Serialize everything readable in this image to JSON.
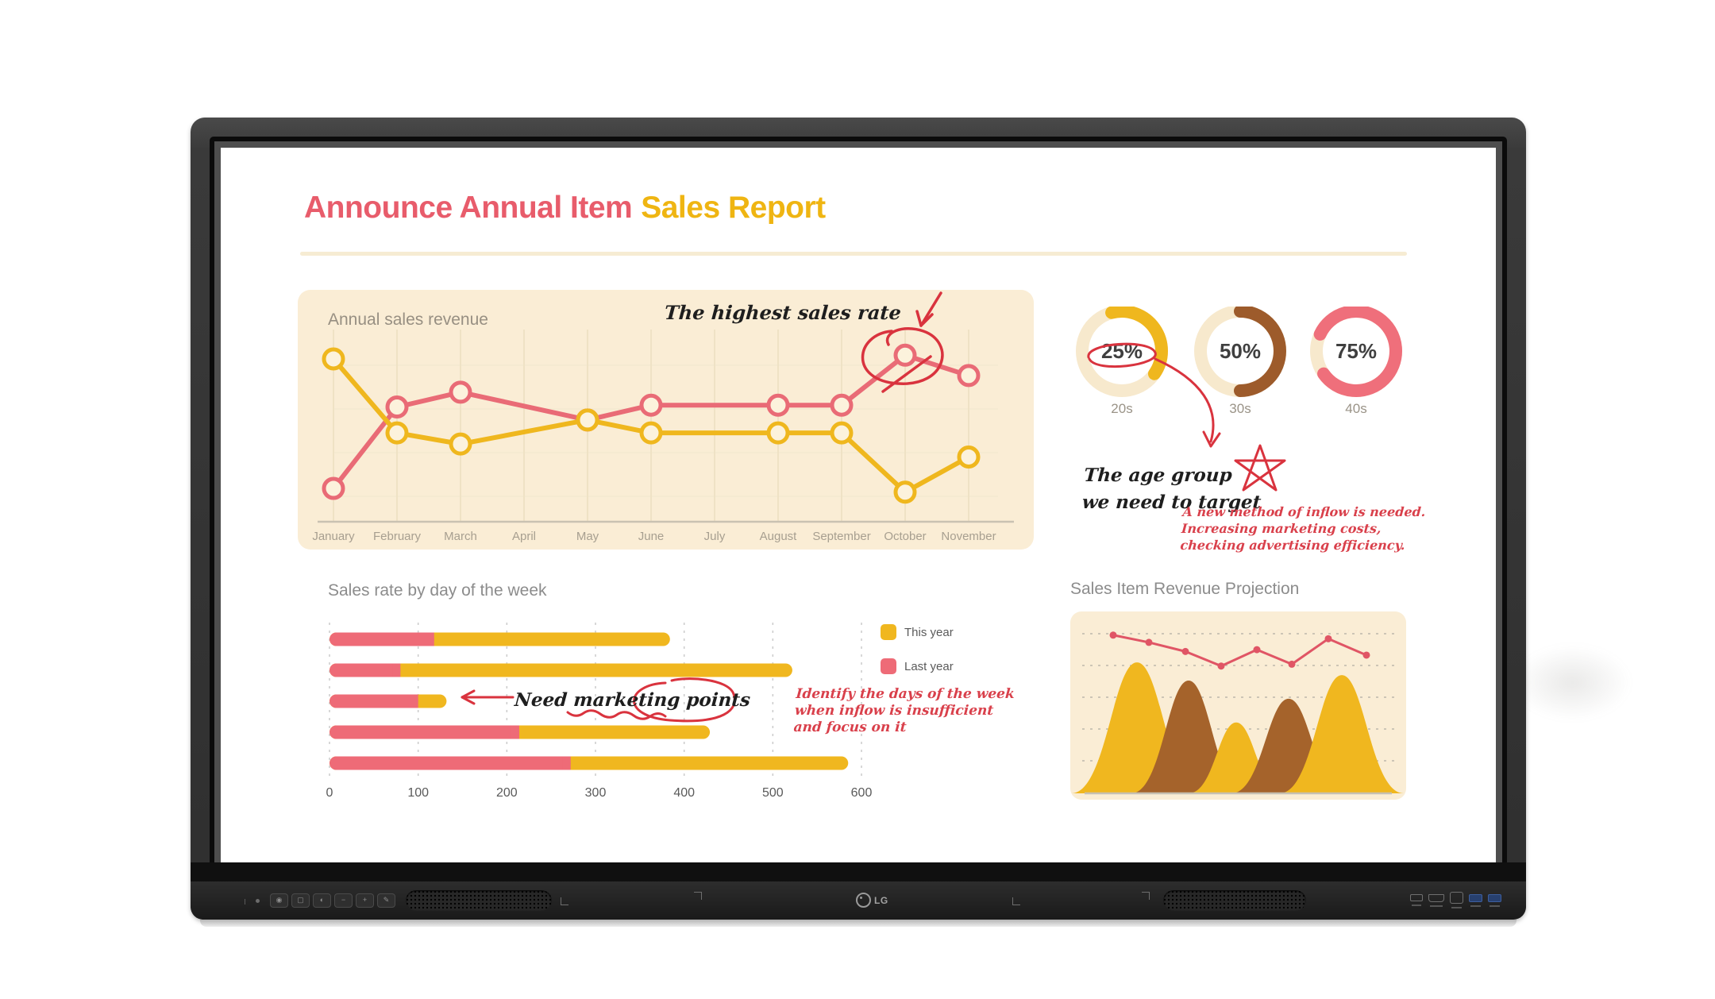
{
  "device": {
    "brand": "LG",
    "buttons": [
      {
        "name": "power-button",
        "glyph": "◉"
      },
      {
        "name": "home-button",
        "glyph": "▢"
      },
      {
        "name": "brightness-button",
        "glyph": "◐"
      },
      {
        "name": "volume-down-button",
        "glyph": "−"
      },
      {
        "name": "volume-up-button",
        "glyph": "+"
      },
      {
        "name": "pen-button",
        "glyph": "✎"
      }
    ]
  },
  "screen": {
    "title": {
      "part1": "Announce Annual Item",
      "part2": "Sales Report"
    },
    "annual": {
      "panel_title": "Annual sales revenue",
      "note": "The highest sales rate"
    },
    "donut_labels_note": "",
    "age_note": {
      "line1": "The age group",
      "line2": "we need to target"
    },
    "para1": {
      "lines": [
        "A new method of inflow is needed.",
        "Increasing marketing costs,",
        "checking advertising efficiency."
      ]
    },
    "weekday": {
      "section_title": "Sales rate by day of the week",
      "note": "Need marketing points"
    },
    "para2": {
      "lines": [
        "Identify the days of the week",
        "when inflow is insufficient",
        "and focus on it"
      ]
    },
    "projection": {
      "section_title": "Sales Item Revenue Projection"
    }
  },
  "palette": {
    "pink": "#E96B76",
    "yellow": "#EFB71E",
    "brown": "#9D5B2B",
    "red_ink": "#D93843",
    "cream": "#FAEDD5",
    "marker_fill": "#FCF2DC"
  },
  "chart_data": [
    {
      "type": "line",
      "title": "Annual sales revenue",
      "categories": [
        "January",
        "February",
        "March",
        "April",
        "May",
        "June",
        "July",
        "August",
        "September",
        "October",
        "November"
      ],
      "series": [
        {
          "name": "series-pink",
          "color": "#E96B76",
          "values": [
            18,
            62,
            70,
            null,
            55,
            63,
            null,
            63,
            63,
            90,
            79
          ]
        },
        {
          "name": "series-yellow",
          "color": "#EFB71E",
          "values": [
            88,
            48,
            42,
            null,
            55,
            48,
            null,
            48,
            48,
            16,
            35
          ]
        }
      ],
      "ylim": [
        0,
        100
      ],
      "grid": "on",
      "annotation": "The highest sales rate",
      "annotated_point": {
        "series": "series-pink",
        "category": "October"
      }
    },
    {
      "type": "pie",
      "variant": "donut",
      "slices": [
        {
          "label": "20s",
          "value_pct": 25,
          "color": "#EFB71E",
          "annotated": true
        },
        {
          "label": "30s",
          "value_pct": 50,
          "color": "#9D5B2B",
          "annotated": false
        },
        {
          "label": "40s",
          "value_pct": 75,
          "color": "#EF6F7B",
          "annotated": false
        }
      ]
    },
    {
      "type": "bar",
      "title": "Sales rate by day of the week",
      "orientation": "horizontal",
      "stacked": true,
      "xlim": [
        0,
        600
      ],
      "x_ticks": [
        0,
        100,
        200,
        300,
        400,
        500,
        600
      ],
      "grid": "dashed",
      "legend_position": "right",
      "series": [
        {
          "name": "Last year",
          "color": "#EE6B77",
          "values": [
            118,
            80,
            100,
            214,
            272
          ]
        },
        {
          "name": "This year",
          "color": "#F0B71F",
          "values": [
            266,
            442,
            32,
            215,
            313
          ]
        }
      ],
      "stack_totals": [
        384,
        522,
        132,
        429,
        585
      ]
    },
    {
      "type": "area",
      "title": "Sales Item Revenue Projection",
      "grid": "dashed",
      "hills": [
        {
          "color": "#F0B71F",
          "height": 72
        },
        {
          "color": "#A5632B",
          "height": 62
        },
        {
          "color": "#F0B71F",
          "height": 39
        },
        {
          "color": "#A5632B",
          "height": 52
        },
        {
          "color": "#F0B71F",
          "height": 65
        }
      ],
      "line": {
        "color": "#E05565",
        "values": [
          87,
          83,
          78,
          70,
          79,
          71,
          85,
          76
        ]
      }
    }
  ]
}
